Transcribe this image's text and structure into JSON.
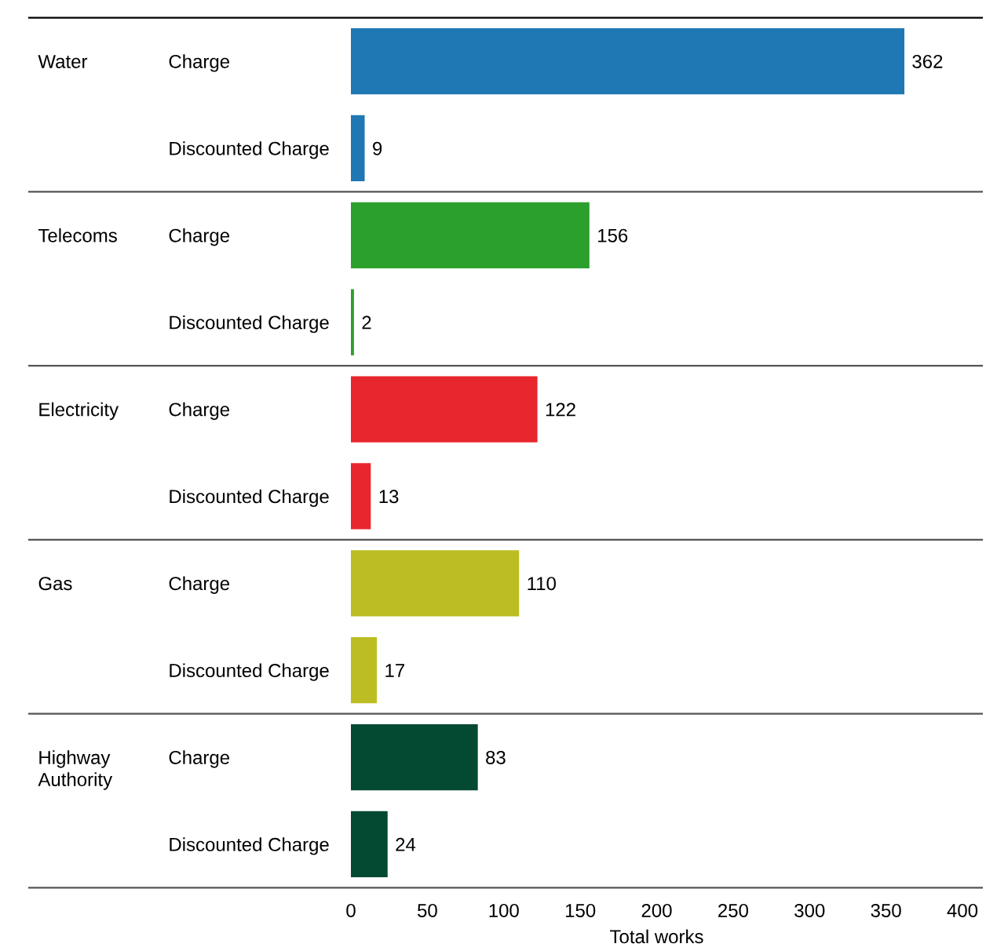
{
  "chart_data": {
    "type": "bar",
    "orientation": "horizontal",
    "categories": [
      "Charge",
      "Discounted Charge",
      "Charge",
      "Discounted Charge",
      "Charge",
      "Discounted Charge",
      "Charge",
      "Discounted Charge",
      "Charge",
      "Discounted Charge"
    ],
    "series": [
      {
        "color": "#1f77b4",
        "values": [
          362,
          9,
          null,
          null,
          null,
          null,
          null,
          null,
          null,
          null
        ]
      },
      {
        "color": "#2ca02c",
        "values": [
          null,
          null,
          156,
          2,
          null,
          null,
          null,
          null,
          null,
          null
        ]
      },
      {
        "color": "#e8262d",
        "values": [
          null,
          null,
          null,
          null,
          122,
          13,
          null,
          null,
          null,
          null
        ]
      },
      {
        "color": "#bcbd22",
        "values": [
          null,
          null,
          null,
          null,
          null,
          null,
          110,
          17,
          null,
          null
        ]
      },
      {
        "color": "#044a33",
        "values": [
          null,
          null,
          null,
          null,
          null,
          null,
          null,
          null,
          83,
          24
        ]
      }
    ],
    "annotations": [
      "Water",
      "Telecoms",
      "Electricity",
      "Gas",
      "Highway Authority"
    ],
    "xlim": [
      0,
      400
    ],
    "xticks": [
      0,
      50,
      100,
      150,
      200,
      250,
      300,
      350,
      400
    ],
    "xlabel": "Total works",
    "data_labels": true,
    "grid": "y"
  }
}
